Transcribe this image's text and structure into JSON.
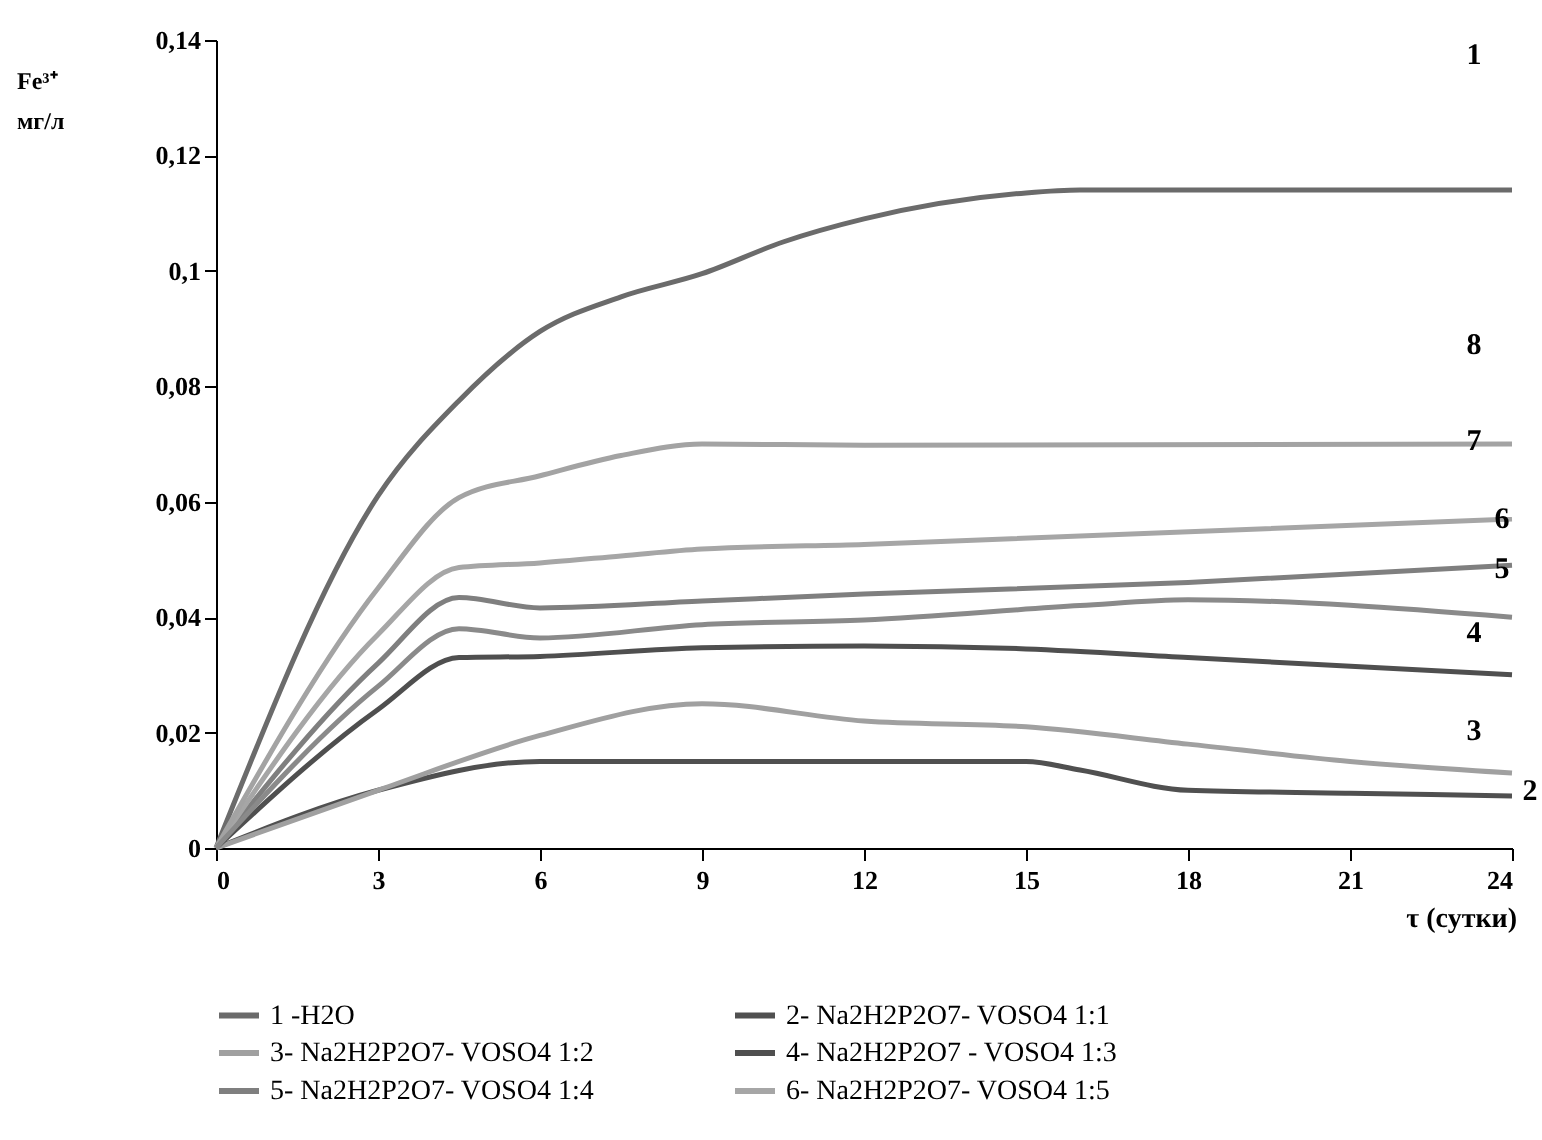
{
  "chart_data": {
    "type": "line",
    "ylabel": "Fe³⁺ мг/л",
    "xlabel": "τ (сутки)",
    "xlim": [
      0,
      24
    ],
    "xticks": [
      0,
      3,
      6,
      9,
      12,
      15,
      18,
      21,
      24
    ],
    "ylim": [
      0,
      0.14
    ],
    "yticks": [
      0,
      {
        "value": 0.02,
        "label": "0,02"
      },
      {
        "value": 0.04,
        "label": "0,04"
      },
      {
        "value": 0.06,
        "label": "0,06"
      },
      {
        "value": 0.08,
        "label": "0,08"
      },
      {
        "value": 0.1,
        "label": "0,1"
      },
      {
        "value": 0.12,
        "label": "0,12"
      },
      {
        "value": 0.14,
        "label": "0,14"
      }
    ],
    "grid": false,
    "legend": "bottom",
    "marker": "none",
    "line_style": "solid",
    "series": [
      {
        "name": "1 -H2O",
        "color": "#6b6b6b",
        "x": [
          0,
          3,
          4.5,
          6,
          7.5,
          9,
          10.5,
          12,
          15,
          16,
          18,
          24
        ],
        "values": [
          0,
          0.061,
          0.0775,
          0.0895,
          0.0955,
          0.0995,
          0.105,
          0.109,
          0.1135,
          0.114,
          0.114,
          0.114
        ]
      },
      {
        "name": "2- Na2H2P2O7- VOSO4 1:1",
        "color": "#505050",
        "x": [
          0,
          3,
          6,
          9,
          12,
          15,
          16,
          18,
          21,
          24
        ],
        "values": [
          0,
          0.01,
          0.015,
          0.015,
          0.015,
          0.015,
          0.0135,
          0.01,
          0.0095,
          0.009
        ]
      },
      {
        "name": "3- Na2H2P2O7- VOSO4  1:2",
        "color": "#a0a0a0",
        "x": [
          0,
          3,
          6,
          9,
          12,
          15,
          18,
          21,
          24
        ],
        "values": [
          0,
          0.01,
          0.0195,
          0.025,
          0.022,
          0.021,
          0.018,
          0.015,
          0.013
        ]
      },
      {
        "name": "4- Na2H2P2O7 - VOSO4 1:3",
        "color": "#4f4f4f",
        "x": [
          0,
          3,
          4.5,
          6,
          9,
          12,
          15,
          18,
          24
        ],
        "values": [
          0,
          0.024,
          0.033,
          0.0332,
          0.0347,
          0.035,
          0.0345,
          0.033,
          0.03
        ]
      },
      {
        "name": "5- Na2H2P2O7- VOSO4 1:4",
        "color": "#7f7f7f",
        "x": [
          0,
          3,
          4.5,
          6,
          9,
          12,
          18,
          24
        ],
        "values": [
          0,
          0.032,
          0.0434,
          0.0416,
          0.0428,
          0.044,
          0.046,
          0.049
        ]
      },
      {
        "name": "6- Na2H2P2O7- VOSO4  1:5",
        "color": "#a6a6a6",
        "x": [
          0,
          3,
          4.5,
          6,
          7.5,
          9,
          12,
          24
        ],
        "values": [
          0,
          0.037,
          0.0486,
          0.0494,
          0.0506,
          0.0518,
          0.0526,
          0.057
        ]
      },
      {
        "color": "#a3a3a3",
        "x": [
          0,
          3,
          4.5,
          6,
          7.5,
          9,
          12,
          24
        ],
        "values": [
          0,
          0.045,
          0.0607,
          0.0645,
          0.068,
          0.07,
          0.0698,
          0.07
        ]
      },
      {
        "color": "#8a8a8a",
        "x": [
          0,
          3,
          4.5,
          6,
          9,
          12,
          16,
          18,
          24
        ],
        "values": [
          0,
          0.028,
          0.038,
          0.0364,
          0.0387,
          0.0395,
          0.042,
          0.043,
          0.04
        ]
      }
    ],
    "annotations": [
      "1",
      "8",
      "7",
      "6",
      "5",
      "4",
      "3",
      "2"
    ]
  }
}
